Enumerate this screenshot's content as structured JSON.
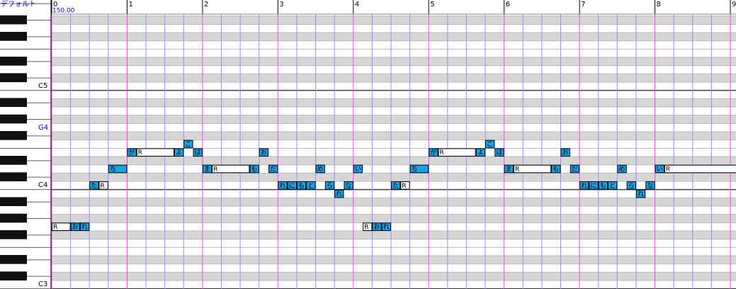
{
  "header": {
    "track": "デフォルト",
    "tempo": "150.00"
  },
  "ruler": {
    "measures": [
      0,
      1,
      2,
      3,
      4,
      5,
      6,
      7,
      8,
      9
    ]
  },
  "keyboard": {
    "labels": [
      "C5",
      "G4",
      "C4",
      "C3"
    ]
  },
  "notes": [
    {
      "lyric": "R",
      "start": 0,
      "length": 1,
      "pitch": 55,
      "color": "#ffffff"
    },
    {
      "lyric": "お",
      "start": 1,
      "length": 0.5,
      "pitch": 55,
      "color": "#1ba1e6"
    },
    {
      "lyric": "れ",
      "start": 1.5,
      "length": 0.5,
      "pitch": 55,
      "color": "#1ba1e6"
    },
    {
      "lyric": "た",
      "start": 2,
      "length": 0.5,
      "pitch": 60,
      "color": "#1ba1e6"
    },
    {
      "lyric": "R",
      "start": 2.5,
      "length": 0.5,
      "pitch": 60,
      "color": "#ffffff"
    },
    {
      "lyric": "ち",
      "start": 3,
      "length": 1,
      "pitch": 62,
      "color": "#1ba1e6"
    },
    {
      "lyric": "が",
      "start": 4,
      "length": 0.5,
      "pitch": 64,
      "color": "#1ba1e6"
    },
    {
      "lyric": "R",
      "start": 4.5,
      "length": 2,
      "pitch": 64,
      "color": "#ffffff"
    },
    {
      "lyric": "よ",
      "start": 6.5,
      "length": 0.5,
      "pitch": 64,
      "color": "#1ba1e6"
    },
    {
      "lyric": "こ",
      "start": 7,
      "length": 0.5,
      "pitch": 65,
      "color": "#1ba1e6"
    },
    {
      "lyric": "は",
      "start": 7.5,
      "length": 0.5,
      "pitch": 64,
      "color": "#1ba1e6"
    },
    {
      "lyric": "ま",
      "start": 8,
      "length": 0.5,
      "pitch": 62,
      "color": "#1ba1e6"
    },
    {
      "lyric": "R",
      "start": 8.5,
      "length": 2,
      "pitch": 62,
      "color": "#ffffff"
    },
    {
      "lyric": "も",
      "start": 10.5,
      "length": 0.5,
      "pitch": 62,
      "color": "#1ba1e6"
    },
    {
      "lyric": "お",
      "start": 11,
      "length": 0.5,
      "pitch": 64,
      "color": "#1ba1e6"
    },
    {
      "lyric": "だ",
      "start": 11.5,
      "length": 0.5,
      "pitch": 62,
      "color": "#1ba1e6"
    },
    {
      "lyric": "れ",
      "start": 12,
      "length": 0.5,
      "pitch": 60,
      "color": "#1ba1e6"
    },
    {
      "lyric": "に",
      "start": 12.5,
      "length": 0.5,
      "pitch": 60,
      "color": "#1ba1e6"
    },
    {
      "lyric": "も",
      "start": 13,
      "length": 0.5,
      "pitch": 60,
      "color": "#1ba1e6"
    },
    {
      "lyric": "と",
      "start": 13.5,
      "length": 0.5,
      "pitch": 60,
      "color": "#1ba1e6"
    },
    {
      "lyric": "め",
      "start": 14,
      "length": 0.5,
      "pitch": 62,
      "color": "#1ba1e6"
    },
    {
      "lyric": "ら",
      "start": 14.5,
      "length": 0.5,
      "pitch": 60,
      "color": "#1ba1e6"
    },
    {
      "lyric": "れ",
      "start": 15,
      "length": 0.5,
      "pitch": 59,
      "color": "#1ba1e6"
    },
    {
      "lyric": "な",
      "start": 15.5,
      "length": 0.5,
      "pitch": 60,
      "color": "#1ba1e6"
    },
    {
      "lyric": "い",
      "start": 16,
      "length": 0.5,
      "pitch": 62,
      "color": "#1ba1e6"
    },
    {
      "lyric": "R",
      "start": 16.5,
      "length": 0.5,
      "pitch": 55,
      "color": "#ffffff"
    },
    {
      "lyric": "お",
      "start": 17,
      "length": 0.5,
      "pitch": 55,
      "color": "#1ba1e6"
    },
    {
      "lyric": "れ",
      "start": 17.5,
      "length": 0.5,
      "pitch": 55,
      "color": "#1ba1e6"
    },
    {
      "lyric": "た",
      "start": 18,
      "length": 0.5,
      "pitch": 60,
      "color": "#1ba1e6"
    },
    {
      "lyric": "R",
      "start": 18.5,
      "length": 0.5,
      "pitch": 60,
      "color": "#ffffff"
    },
    {
      "lyric": "ち",
      "start": 19,
      "length": 1,
      "pitch": 62,
      "color": "#1ba1e6"
    },
    {
      "lyric": "が",
      "start": 20,
      "length": 0.5,
      "pitch": 64,
      "color": "#1ba1e6"
    },
    {
      "lyric": "R",
      "start": 20.5,
      "length": 2,
      "pitch": 64,
      "color": "#ffffff"
    },
    {
      "lyric": "よ",
      "start": 22.5,
      "length": 0.5,
      "pitch": 64,
      "color": "#1ba1e6"
    },
    {
      "lyric": "こ",
      "start": 23,
      "length": 0.5,
      "pitch": 65,
      "color": "#1ba1e6"
    },
    {
      "lyric": "は",
      "start": 23.5,
      "length": 0.5,
      "pitch": 64,
      "color": "#1ba1e6"
    },
    {
      "lyric": "ま",
      "start": 24,
      "length": 0.5,
      "pitch": 62,
      "color": "#1ba1e6"
    },
    {
      "lyric": "R",
      "start": 24.5,
      "length": 2,
      "pitch": 62,
      "color": "#ffffff"
    },
    {
      "lyric": "も",
      "start": 26.5,
      "length": 0.5,
      "pitch": 62,
      "color": "#1ba1e6"
    },
    {
      "lyric": "お",
      "start": 27,
      "length": 0.5,
      "pitch": 64,
      "color": "#1ba1e6"
    },
    {
      "lyric": "だ",
      "start": 27.5,
      "length": 0.5,
      "pitch": 62,
      "color": "#1ba1e6"
    },
    {
      "lyric": "れ",
      "start": 28,
      "length": 0.5,
      "pitch": 60,
      "color": "#1ba1e6"
    },
    {
      "lyric": "に",
      "start": 28.5,
      "length": 0.5,
      "pitch": 60,
      "color": "#1ba1e6"
    },
    {
      "lyric": "も",
      "start": 29,
      "length": 0.5,
      "pitch": 60,
      "color": "#1ba1e6"
    },
    {
      "lyric": "と",
      "start": 29.5,
      "length": 0.5,
      "pitch": 60,
      "color": "#1ba1e6"
    },
    {
      "lyric": "め",
      "start": 30,
      "length": 0.5,
      "pitch": 62,
      "color": "#1ba1e6"
    },
    {
      "lyric": "ら",
      "start": 30.5,
      "length": 0.5,
      "pitch": 60,
      "color": "#1ba1e6"
    },
    {
      "lyric": "れ",
      "start": 31,
      "length": 0.5,
      "pitch": 59,
      "color": "#1ba1e6"
    },
    {
      "lyric": "な",
      "start": 31.5,
      "length": 0.5,
      "pitch": 60,
      "color": "#1ba1e6"
    },
    {
      "lyric": "い",
      "start": 32,
      "length": 0.5,
      "pitch": 62,
      "color": "#1ba1e6"
    },
    {
      "lyric": "R",
      "start": 32.5,
      "length": 4,
      "pitch": 62,
      "color": "#ffffff"
    }
  ]
}
